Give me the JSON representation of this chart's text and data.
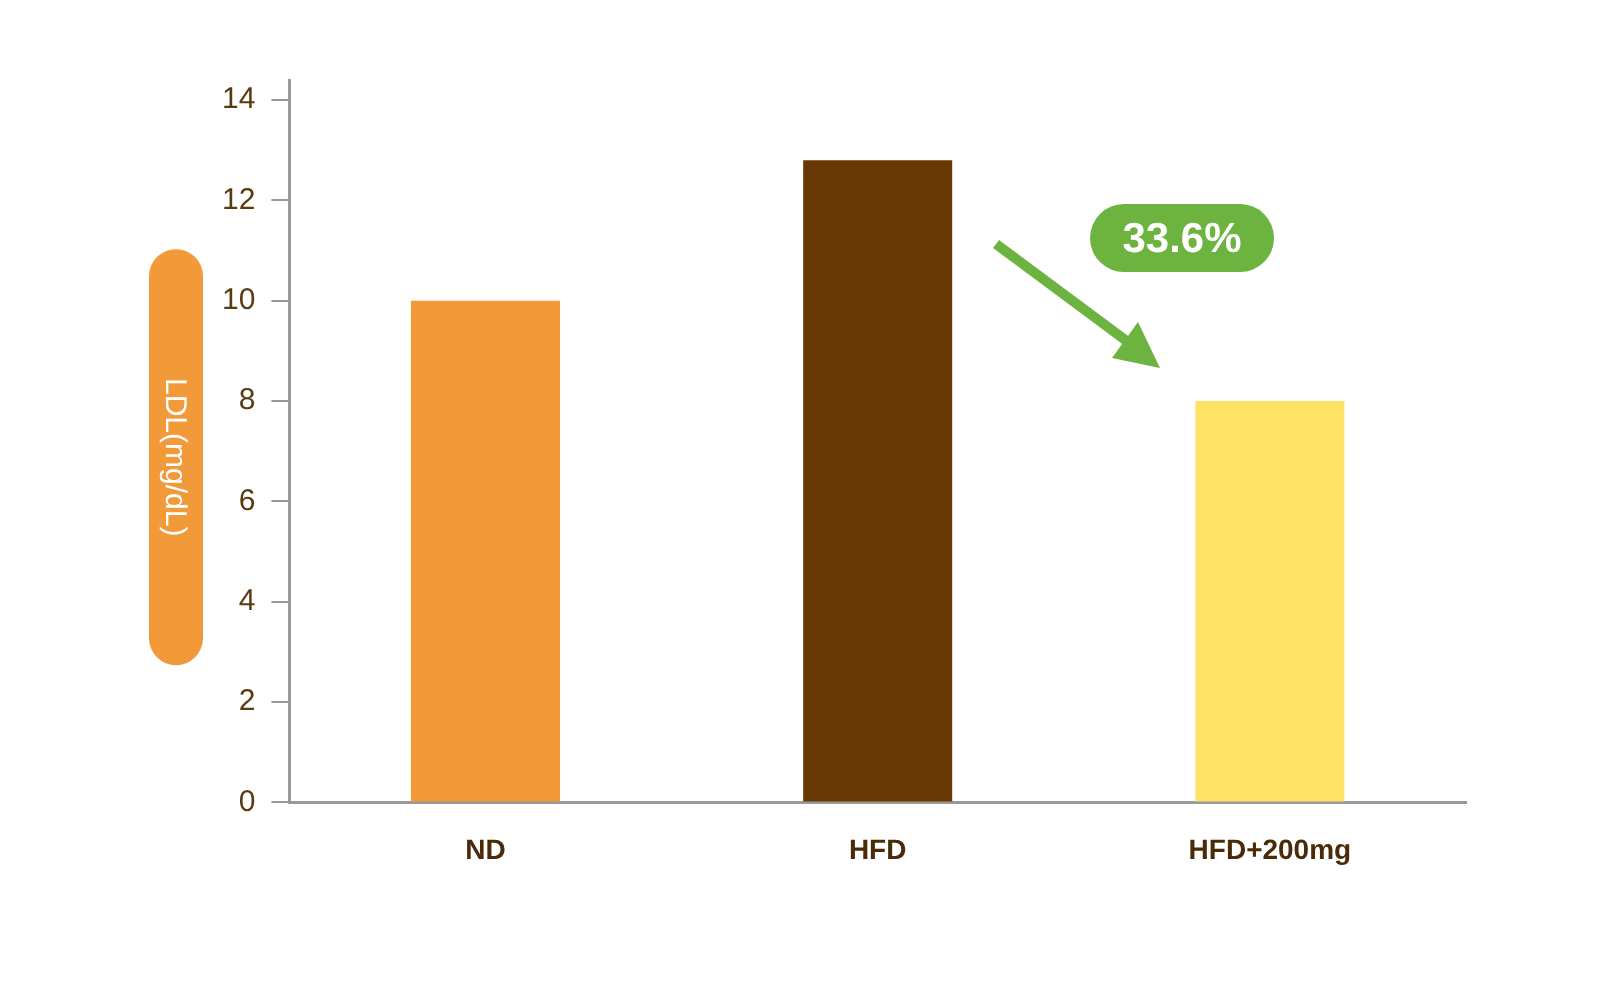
{
  "chart_data": {
    "type": "bar",
    "ylabel": "LDL(mg/dL)",
    "categories": [
      "ND",
      "HFD",
      "HFD+200mg"
    ],
    "values": [
      10,
      12.8,
      8
    ],
    "colors": [
      "#f29a3a",
      "#693905",
      "#fde264"
    ],
    "ylim": [
      0,
      14.4
    ],
    "yticks": [
      0,
      2,
      4,
      6,
      8,
      10,
      12,
      14
    ],
    "annotations": [
      "33.6%"
    ]
  }
}
